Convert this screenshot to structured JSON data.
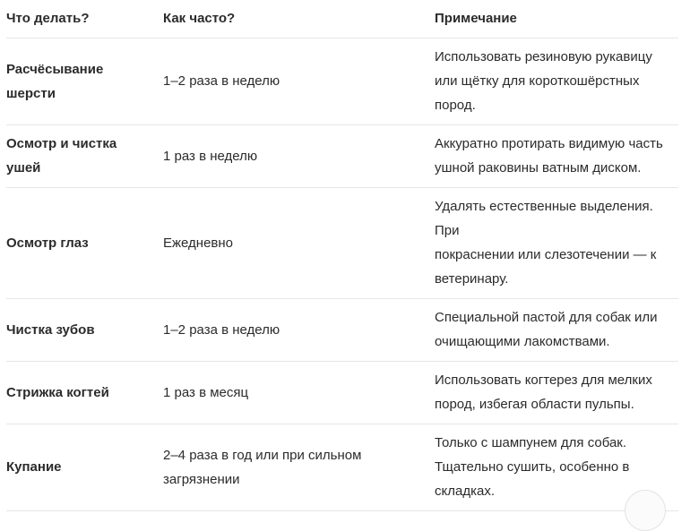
{
  "table": {
    "columns": [
      "Что делать?",
      "Как часто?",
      "Примечание"
    ],
    "rows": [
      {
        "task": "Расчёсывание\nшерсти",
        "frequency": "1–2 раза в неделю",
        "note": "Использовать резиновую рукавицу\nили щётку для короткошёрстных\nпород."
      },
      {
        "task": "Осмотр и чистка\nушей",
        "frequency": "1 раз в неделю",
        "note": "Аккуратно протирать видимую часть\nушной раковины ватным диском."
      },
      {
        "task": "Осмотр глаз",
        "frequency": "Ежедневно",
        "note": "Удалять естественные выделения. При\nпокраснении или слезотечении — к\nветеринару."
      },
      {
        "task": "Чистка зубов",
        "frequency": "1–2 раза в неделю",
        "note": "Специальной пастой для собак или\nочищающими лакомствами."
      },
      {
        "task": "Стрижка когтей",
        "frequency": "1 раз в месяц",
        "note": "Использовать когтерез для мелких\nпород, избегая области пульпы."
      },
      {
        "task": "Купание",
        "frequency": "2–4 раза в год или при сильном\nзагрязнении",
        "note": "Только с шампунем для собак.\nТщательно сушить, особенно в\nскладках."
      }
    ]
  },
  "colors": {
    "text": "#2b2b2b",
    "divider": "#e6e6e6",
    "background": "#ffffff"
  }
}
